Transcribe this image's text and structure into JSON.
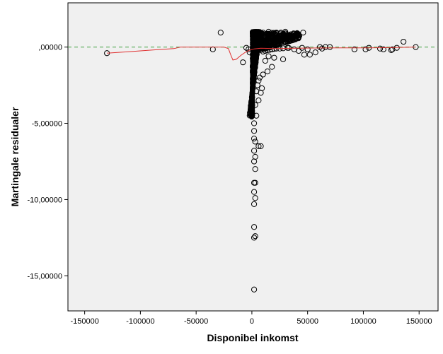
{
  "chart_data": {
    "type": "scatter",
    "title": "",
    "xlabel": "Disponibel inkomst",
    "ylabel": "Martingale residualer",
    "xlim": [
      -165000,
      167000
    ],
    "ylim": [
      -17.3,
      2.9
    ],
    "x_ticks": [
      -150000,
      -100000,
      -50000,
      0,
      50000,
      100000,
      150000
    ],
    "x_tick_labels": [
      "-150000",
      "-100000",
      "-50000",
      "0",
      "50000",
      "100000",
      "150000"
    ],
    "y_ticks": [
      0,
      -5,
      -10,
      -15
    ],
    "y_tick_labels": [
      ",00000",
      "-5,00000",
      "-10,00000",
      "-15,00000"
    ],
    "reference_line": {
      "y": 0,
      "style": "dashed",
      "color": "#3c9e3c"
    },
    "grid": false,
    "colors": {
      "plot_background": "#f0f0f0",
      "points": "#000000",
      "smoother": "#e03030"
    },
    "series": [
      {
        "kind": "points",
        "points": [
          [
            -130000,
            -0.4
          ],
          [
            -35000,
            -0.15
          ],
          [
            -28000,
            0.95
          ],
          [
            -8000,
            -1.0
          ],
          [
            -5000,
            -0.05
          ],
          [
            -3000,
            -0.15
          ],
          [
            -2000,
            -0.35
          ],
          [
            2000,
            0.05
          ],
          [
            4000,
            -0.25
          ],
          [
            6000,
            -0.15
          ],
          [
            8000,
            -0.2
          ],
          [
            10000,
            -0.3
          ],
          [
            12000,
            -0.25
          ],
          [
            14000,
            -0.2
          ],
          [
            16000,
            -0.18
          ],
          [
            18000,
            -0.15
          ],
          [
            20000,
            -0.12
          ],
          [
            22000,
            -0.1
          ],
          [
            25000,
            -0.1
          ],
          [
            28000,
            -0.08
          ],
          [
            32000,
            -0.05
          ],
          [
            20000,
            -0.7
          ],
          [
            28000,
            -0.8
          ],
          [
            15000,
            -0.6
          ],
          [
            12000,
            -0.9
          ],
          [
            18000,
            -1.3
          ],
          [
            14000,
            -1.6
          ],
          [
            10000,
            -1.8
          ],
          [
            7000,
            -2.0
          ],
          [
            9000,
            -2.7
          ],
          [
            6000,
            -2.2
          ],
          [
            5000,
            -2.5
          ],
          [
            4000,
            -2.9
          ],
          [
            8000,
            -3.0
          ],
          [
            6000,
            -3.5
          ],
          [
            3000,
            -3.8
          ],
          [
            4000,
            -4.5
          ],
          [
            2000,
            -5.0
          ],
          [
            2000,
            -5.5
          ],
          [
            2000,
            -6.0
          ],
          [
            3000,
            -6.2
          ],
          [
            6000,
            -6.5
          ],
          [
            8000,
            -6.5
          ],
          [
            2000,
            -6.8
          ],
          [
            3000,
            -7.2
          ],
          [
            2000,
            -7.5
          ],
          [
            3000,
            -8.0
          ],
          [
            2000,
            -8.9
          ],
          [
            3000,
            -8.9
          ],
          [
            2000,
            -9.5
          ],
          [
            3000,
            -9.9
          ],
          [
            2000,
            -10.3
          ],
          [
            2000,
            -11.8
          ],
          [
            3000,
            -12.4
          ],
          [
            2000,
            -12.5
          ],
          [
            2000,
            -15.9
          ],
          [
            10000,
            0.95
          ],
          [
            15000,
            1.0
          ],
          [
            22000,
            0.95
          ],
          [
            26000,
            0.95
          ],
          [
            30000,
            1.0
          ],
          [
            46000,
            0.95
          ],
          [
            33000,
            -0.05
          ],
          [
            38000,
            -0.15
          ],
          [
            42000,
            -0.25
          ],
          [
            45000,
            -0.05
          ],
          [
            47000,
            -0.5
          ],
          [
            50000,
            -0.15
          ],
          [
            52000,
            -0.5
          ],
          [
            57000,
            -0.35
          ],
          [
            61000,
            0.0
          ],
          [
            63000,
            -0.1
          ],
          [
            66000,
            0.0
          ],
          [
            70000,
            0.0
          ],
          [
            92000,
            -0.15
          ],
          [
            102000,
            -0.15
          ],
          [
            105000,
            -0.05
          ],
          [
            115000,
            -0.1
          ],
          [
            118000,
            -0.15
          ],
          [
            125000,
            -0.2
          ],
          [
            126000,
            -0.15
          ],
          [
            130000,
            -0.05
          ],
          [
            136000,
            0.35
          ],
          [
            147000,
            0.0
          ]
        ]
      },
      {
        "kind": "smoother",
        "points": [
          [
            -130000,
            -0.4
          ],
          [
            -110000,
            -0.3
          ],
          [
            -90000,
            -0.2
          ],
          [
            -70000,
            -0.1
          ],
          [
            -64000,
            0.0
          ],
          [
            -45000,
            0.0
          ],
          [
            -25000,
            0.0
          ],
          [
            -21000,
            -0.1
          ],
          [
            -19000,
            -0.5
          ],
          [
            -17000,
            -0.85
          ],
          [
            -14000,
            -0.8
          ],
          [
            -10000,
            -0.55
          ],
          [
            -6000,
            -0.35
          ],
          [
            -2000,
            -0.2
          ],
          [
            2000,
            -0.12
          ],
          [
            8000,
            -0.08
          ],
          [
            20000,
            -0.1
          ],
          [
            40000,
            -0.08
          ],
          [
            60000,
            -0.06
          ],
          [
            80000,
            -0.05
          ],
          [
            100000,
            -0.05
          ],
          [
            120000,
            -0.04
          ],
          [
            147000,
            0.0
          ]
        ]
      }
    ]
  }
}
